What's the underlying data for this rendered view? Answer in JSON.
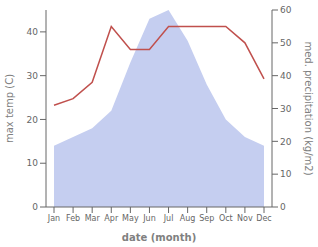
{
  "chart_data": {
    "type": "area",
    "categories": [
      "Jan",
      "Feb",
      "Mar",
      "Apr",
      "May",
      "Jun",
      "Jul",
      "Aug",
      "Sep",
      "Oct",
      "Nov",
      "Dec"
    ],
    "xlabel": "date (month)",
    "ylabel": "max temp (C)",
    "y2label": "med. precipitation (kg/m2)",
    "ylim": [
      0,
      45
    ],
    "yticks": [
      0,
      10,
      20,
      30,
      40
    ],
    "y2lim": [
      0,
      60
    ],
    "y2ticks": [
      0,
      10,
      20,
      30,
      40,
      50,
      60
    ],
    "series": [
      {
        "type": "area",
        "color": "#c5cef0",
        "values": [
          14,
          16,
          18,
          22,
          33,
          43,
          45,
          38,
          28,
          20,
          16,
          14
        ]
      },
      {
        "type": "line",
        "color": "#c0504d",
        "axis": "y2",
        "values": [
          31,
          33,
          38,
          55,
          48,
          48,
          55,
          55,
          55,
          55,
          50,
          39
        ]
      }
    ]
  }
}
